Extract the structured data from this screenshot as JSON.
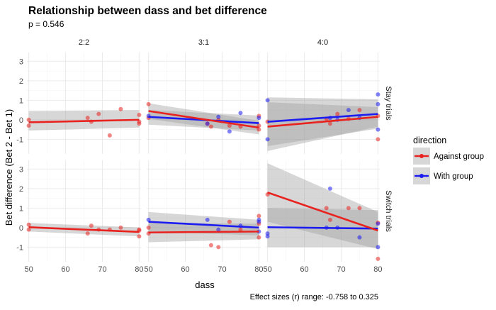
{
  "title": "Relationship between dass and bet difference",
  "subtitle": "p = 0.546",
  "caption": "Effect sizes (r) range: -0.758 to 0.325",
  "colors": {
    "against": "#e8231f",
    "with": "#1c1cf0",
    "band": "#9a9a9a",
    "panel_bg": "#ffffff",
    "grid": "#ebebeb"
  },
  "chart_data": {
    "type": "scatter",
    "title": "Relationship between dass and bet difference",
    "subtitle": "p = 0.546",
    "xlabel": "dass",
    "ylabel": "Bet difference (Bet 2 - Bet 1)",
    "xlim": [
      49.5,
      80.5
    ],
    "ylim": [
      -1.75,
      3.45
    ],
    "x_ticks": [
      50,
      60,
      70,
      80
    ],
    "y_ticks": [
      -1,
      0,
      1,
      2,
      3
    ],
    "col_facets": [
      "2:2",
      "3:1",
      "4:0"
    ],
    "row_facets": [
      "Stay trials",
      "Switch trials"
    ],
    "grid": true,
    "legend": {
      "title": "direction",
      "position": "right",
      "entries": [
        {
          "key": "against",
          "label": "Against group",
          "color": "#e8231f"
        },
        {
          "key": "with",
          "label": "With group",
          "color": "#1c1cf0"
        }
      ]
    },
    "panels": [
      {
        "row": 0,
        "col": 0,
        "points": [
          {
            "s": "against",
            "x": 50,
            "y": 0.0
          },
          {
            "s": "against",
            "x": 50,
            "y": -0.3
          },
          {
            "s": "against",
            "x": 66,
            "y": 0.1
          },
          {
            "s": "against",
            "x": 67,
            "y": -0.1
          },
          {
            "s": "against",
            "x": 69,
            "y": 0.3
          },
          {
            "s": "against",
            "x": 72,
            "y": -0.8
          },
          {
            "s": "against",
            "x": 75,
            "y": 0.55
          },
          {
            "s": "against",
            "x": 80,
            "y": 0.25
          },
          {
            "s": "against",
            "x": 80,
            "y": -0.1
          },
          {
            "s": "against",
            "x": 80,
            "y": -0.2
          }
        ],
        "fits": [
          {
            "s": "against",
            "x": [
              50,
              80
            ],
            "y": [
              -0.13,
              0.0
            ],
            "lo": [
              -0.55,
              -0.4
            ],
            "hi": [
              0.45,
              0.5
            ]
          }
        ]
      },
      {
        "row": 0,
        "col": 1,
        "points": [
          {
            "s": "against",
            "x": 50,
            "y": 0.8
          },
          {
            "s": "against",
            "x": 50,
            "y": 0.1
          },
          {
            "s": "against",
            "x": 66,
            "y": -0.2
          },
          {
            "s": "against",
            "x": 67,
            "y": -0.35
          },
          {
            "s": "against",
            "x": 69,
            "y": 0.0
          },
          {
            "s": "against",
            "x": 72,
            "y": -0.3
          },
          {
            "s": "against",
            "x": 75,
            "y": -0.35
          },
          {
            "s": "against",
            "x": 80,
            "y": 0.2
          },
          {
            "s": "against",
            "x": 80,
            "y": -0.3
          },
          {
            "s": "against",
            "x": 80,
            "y": -0.5
          },
          {
            "s": "with",
            "x": 50,
            "y": 0.2
          },
          {
            "s": "with",
            "x": 66,
            "y": -0.2
          },
          {
            "s": "with",
            "x": 69,
            "y": 0.15
          },
          {
            "s": "with",
            "x": 72,
            "y": -0.6
          },
          {
            "s": "with",
            "x": 75,
            "y": 0.35
          },
          {
            "s": "with",
            "x": 80,
            "y": 0.1
          }
        ],
        "fits": [
          {
            "s": "with",
            "x": [
              50,
              80
            ],
            "y": [
              0.15,
              -0.17
            ],
            "lo": [
              -0.25,
              -0.55
            ],
            "hi": [
              0.5,
              0.22
            ]
          },
          {
            "s": "against",
            "x": [
              50,
              80
            ],
            "y": [
              0.45,
              -0.4
            ],
            "lo": [
              0.05,
              -0.75
            ],
            "hi": [
              0.85,
              -0.05
            ]
          }
        ]
      },
      {
        "row": 0,
        "col": 2,
        "points": [
          {
            "s": "against",
            "x": 50,
            "y": -0.1
          },
          {
            "s": "against",
            "x": 66,
            "y": 0.05
          },
          {
            "s": "against",
            "x": 67,
            "y": -0.2
          },
          {
            "s": "against",
            "x": 69,
            "y": 0.3
          },
          {
            "s": "against",
            "x": 72,
            "y": 0.05
          },
          {
            "s": "against",
            "x": 75,
            "y": 0.5
          },
          {
            "s": "against",
            "x": 80,
            "y": 0.2
          },
          {
            "s": "against",
            "x": 80,
            "y": -1.0
          },
          {
            "s": "with",
            "x": 50,
            "y": 1.0
          },
          {
            "s": "with",
            "x": 50,
            "y": -1.0
          },
          {
            "s": "with",
            "x": 67,
            "y": 0.1
          },
          {
            "s": "with",
            "x": 69,
            "y": 0.0
          },
          {
            "s": "with",
            "x": 72,
            "y": 0.5
          },
          {
            "s": "with",
            "x": 75,
            "y": 0.1
          },
          {
            "s": "with",
            "x": 80,
            "y": 1.3
          },
          {
            "s": "with",
            "x": 80,
            "y": 0.8
          },
          {
            "s": "with",
            "x": 80,
            "y": -0.5
          }
        ],
        "fits": [
          {
            "s": "against",
            "x": [
              50,
              80
            ],
            "y": [
              -0.35,
              0.15
            ],
            "lo": [
              -1.6,
              -0.35
            ],
            "hi": [
              0.9,
              0.65
            ]
          },
          {
            "s": "with",
            "x": [
              50,
              80
            ],
            "y": [
              -0.1,
              0.3
            ],
            "lo": [
              -1.35,
              -0.45
            ],
            "hi": [
              1.15,
              1.05
            ]
          }
        ]
      },
      {
        "row": 1,
        "col": 0,
        "points": [
          {
            "s": "against",
            "x": 50,
            "y": 0.15
          },
          {
            "s": "against",
            "x": 50,
            "y": -0.1
          },
          {
            "s": "against",
            "x": 66,
            "y": -0.3
          },
          {
            "s": "against",
            "x": 67,
            "y": 0.1
          },
          {
            "s": "against",
            "x": 69,
            "y": -0.1
          },
          {
            "s": "against",
            "x": 72,
            "y": -0.1
          },
          {
            "s": "against",
            "x": 75,
            "y": 0.0
          },
          {
            "s": "against",
            "x": 80,
            "y": -0.1
          },
          {
            "s": "against",
            "x": 80,
            "y": -0.45
          },
          {
            "s": "against",
            "x": 80,
            "y": -0.15
          }
        ],
        "fits": [
          {
            "s": "against",
            "x": [
              50,
              80
            ],
            "y": [
              0.02,
              -0.22
            ],
            "lo": [
              -0.2,
              -0.45
            ],
            "hi": [
              0.24,
              0.01
            ]
          }
        ]
      },
      {
        "row": 1,
        "col": 1,
        "points": [
          {
            "s": "against",
            "x": 50,
            "y": 0.0
          },
          {
            "s": "against",
            "x": 50,
            "y": -0.3
          },
          {
            "s": "against",
            "x": 67,
            "y": -0.9
          },
          {
            "s": "against",
            "x": 69,
            "y": -1.0
          },
          {
            "s": "against",
            "x": 72,
            "y": 0.3
          },
          {
            "s": "against",
            "x": 75,
            "y": -0.1
          },
          {
            "s": "against",
            "x": 80,
            "y": 0.6
          },
          {
            "s": "against",
            "x": 80,
            "y": 0.2
          },
          {
            "s": "against",
            "x": 80,
            "y": -0.5
          },
          {
            "s": "with",
            "x": 50,
            "y": 0.4
          },
          {
            "s": "with",
            "x": 66,
            "y": 0.4
          },
          {
            "s": "with",
            "x": 69,
            "y": -0.1
          },
          {
            "s": "with",
            "x": 75,
            "y": 0.1
          },
          {
            "s": "with",
            "x": 80,
            "y": 0.4
          },
          {
            "s": "with",
            "x": 80,
            "y": 0.3
          },
          {
            "s": "with",
            "x": 80,
            "y": -0.2
          }
        ],
        "fits": [
          {
            "s": "with",
            "x": [
              50,
              80
            ],
            "y": [
              0.3,
              0.0
            ],
            "lo": [
              -0.2,
              -0.4
            ],
            "hi": [
              0.8,
              0.4
            ]
          },
          {
            "s": "against",
            "x": [
              50,
              80
            ],
            "y": [
              -0.25,
              -0.2
            ],
            "lo": [
              -0.75,
              -0.6
            ],
            "hi": [
              0.25,
              0.2
            ]
          }
        ]
      },
      {
        "row": 1,
        "col": 2,
        "points": [
          {
            "s": "against",
            "x": 50,
            "y": 1.7
          },
          {
            "s": "against",
            "x": 66,
            "y": 1.0
          },
          {
            "s": "against",
            "x": 67,
            "y": 0.4
          },
          {
            "s": "against",
            "x": 72,
            "y": 1.0
          },
          {
            "s": "against",
            "x": 75,
            "y": 1.0
          },
          {
            "s": "against",
            "x": 80,
            "y": 0.25
          },
          {
            "s": "against",
            "x": 80,
            "y": -1.6
          },
          {
            "s": "with",
            "x": 50,
            "y": -0.3
          },
          {
            "s": "with",
            "x": 50,
            "y": -0.45
          },
          {
            "s": "with",
            "x": 66,
            "y": 0.0
          },
          {
            "s": "with",
            "x": 67,
            "y": 2.0
          },
          {
            "s": "with",
            "x": 69,
            "y": 0.0
          },
          {
            "s": "with",
            "x": 75,
            "y": -0.5
          },
          {
            "s": "with",
            "x": 80,
            "y": 0.2
          },
          {
            "s": "with",
            "x": 80,
            "y": -1.0
          }
        ],
        "fits": [
          {
            "s": "with",
            "x": [
              50,
              80
            ],
            "y": [
              0.02,
              -0.05
            ],
            "lo": [
              -1.0,
              -1.0
            ],
            "hi": [
              1.0,
              0.9
            ]
          },
          {
            "s": "against",
            "x": [
              50,
              80
            ],
            "y": [
              1.8,
              -0.15
            ],
            "lo": [
              0.3,
              -1.1
            ],
            "hi": [
              3.3,
              0.8
            ]
          }
        ]
      }
    ]
  }
}
